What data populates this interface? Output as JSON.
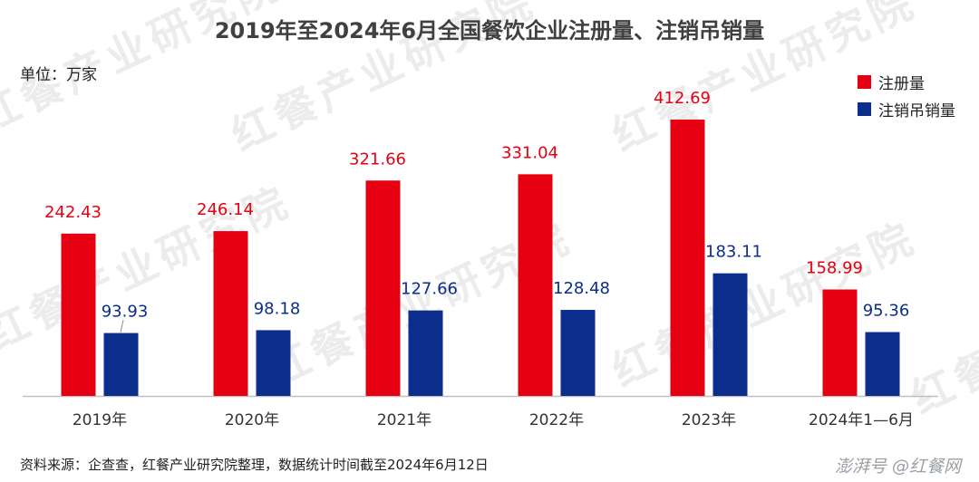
{
  "title": "2019年至2024年6月全国餐饮企业注册量、注销吊销量",
  "unit_label": "单位：万家",
  "source": "资料来源：企查查，红餐产业研究院整理，数据统计时间截至2024年6月12日",
  "footer_brand": "澎湃号 @红餐网",
  "watermark": "红餐产业研究院",
  "colors": {
    "registered": "#E60012",
    "cancelled": "#0B2D8C"
  },
  "chart_data": {
    "type": "bar",
    "title": "2019年至2024年6月全国餐饮企业注册量、注销吊销量",
    "categories": [
      "2019年",
      "2020年",
      "2021年",
      "2022年",
      "2023年",
      "2024年1—6月"
    ],
    "series": [
      {
        "name": "注册量",
        "values": [
          242.43,
          246.14,
          321.66,
          331.04,
          412.69,
          158.99
        ]
      },
      {
        "name": "注销吊销量",
        "values": [
          93.93,
          98.18,
          127.66,
          128.48,
          183.11,
          95.36
        ]
      }
    ],
    "ylabel": "",
    "xlabel": "",
    "ylim": [
      0,
      412.69
    ],
    "grid": false,
    "legend_position": "top-right"
  }
}
